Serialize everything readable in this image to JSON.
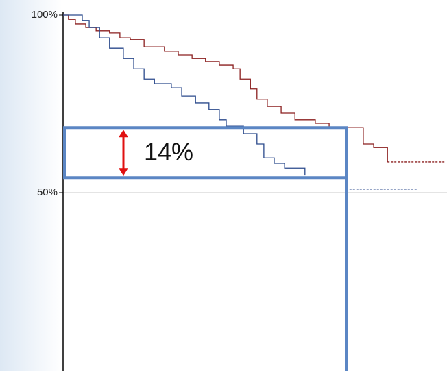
{
  "chart_data": {
    "type": "step",
    "ylim": [
      0,
      100
    ],
    "yticks": [
      {
        "value": 50,
        "label": "50%"
      },
      {
        "value": 100,
        "label": "100%"
      }
    ],
    "xlim": [
      0,
      100
    ],
    "grid": true,
    "series": [
      {
        "color": "#8b1f1f",
        "x": [
          0,
          1.4,
          3.2,
          5.9,
          8.6,
          12.1,
          14.8,
          17.5,
          21.1,
          26.4,
          30,
          33.6,
          37.1,
          40.7,
          44.3,
          46.1,
          48.8,
          50.5,
          53.2,
          56.8,
          60.4,
          65.7,
          69.3,
          78.2,
          80.9,
          84.5
        ],
        "values": [
          100,
          98.8,
          97.5,
          96.5,
          95.6,
          95,
          93.6,
          93.1,
          91.1,
          89.8,
          88.8,
          87.8,
          86.9,
          85.9,
          84.9,
          82,
          79.2,
          76.3,
          74.3,
          72.4,
          70.5,
          69.5,
          68.3,
          63.7,
          62.7,
          58.7
        ]
      },
      {
        "color": "#2b4a8c",
        "x": [
          0,
          5,
          6.8,
          9.5,
          12.1,
          15.7,
          18.4,
          21.1,
          23.8,
          28.2,
          30.9,
          34.5,
          38,
          40.7,
          42.5,
          47,
          50.5,
          52.3,
          55,
          57.7,
          63
        ],
        "values": [
          100,
          98.5,
          96.5,
          93.6,
          90.7,
          87.8,
          84.9,
          82,
          80.7,
          79.5,
          77.2,
          75.3,
          73.4,
          70.5,
          68.7,
          66.6,
          63.7,
          59.8,
          58.3,
          56.9,
          55
        ]
      },
      {
        "color": "#8b1f1f",
        "dashed": true,
        "x": [
          84.5,
          99.6
        ],
        "values": [
          58.7,
          58.7
        ]
      },
      {
        "color": "#2b4a8c",
        "dashed": true,
        "x": [
          74.6,
          92.1
        ],
        "values": [
          51,
          51
        ]
      }
    ],
    "annotation": {
      "text": "14%",
      "upper": 68.3,
      "lower": 54.2,
      "x": 73.75,
      "box_color": "#5b86c4",
      "arrow_color": "#e01010"
    }
  }
}
